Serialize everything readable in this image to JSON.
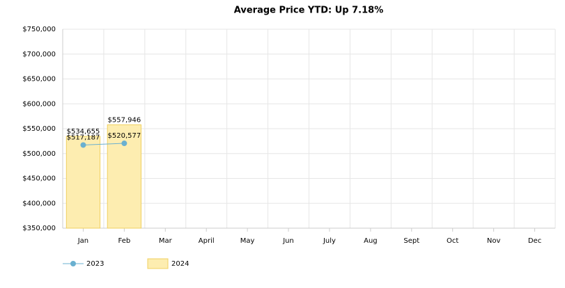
{
  "chart_data": {
    "type": "bar",
    "title": "Average Price YTD: Up 7.18%",
    "categories": [
      "Jan",
      "Feb",
      "Mar",
      "April",
      "May",
      "Jun",
      "July",
      "Aug",
      "Sept",
      "Oct",
      "Nov",
      "Dec"
    ],
    "series": [
      {
        "name": "2024",
        "type": "bar",
        "color": "#fdedb0",
        "values": [
          534655,
          557946,
          null,
          null,
          null,
          null,
          null,
          null,
          null,
          null,
          null,
          null
        ],
        "value_labels": [
          "$534,655",
          "$557,946",
          null,
          null,
          null,
          null,
          null,
          null,
          null,
          null,
          null,
          null
        ]
      },
      {
        "name": "2023",
        "type": "line",
        "color": "#6ab0d0",
        "values": [
          517187,
          520577,
          null,
          null,
          null,
          null,
          null,
          null,
          null,
          null,
          null,
          null
        ],
        "value_labels": [
          "$517,187",
          "$520,577",
          null,
          null,
          null,
          null,
          null,
          null,
          null,
          null,
          null,
          null
        ]
      }
    ],
    "ylim": [
      350000,
      750000
    ],
    "yticks": [
      {
        "value": 350000,
        "label": "$350,000"
      },
      {
        "value": 400000,
        "label": "$400,000"
      },
      {
        "value": 450000,
        "label": "$450,000"
      },
      {
        "value": 500000,
        "label": "$500,000"
      },
      {
        "value": 550000,
        "label": "$550,000"
      },
      {
        "value": 600000,
        "label": "$600,000"
      },
      {
        "value": 650000,
        "label": "$650,000"
      },
      {
        "value": 700000,
        "label": "$700,000"
      },
      {
        "value": 750000,
        "label": "$750,000"
      }
    ],
    "grid": true
  }
}
